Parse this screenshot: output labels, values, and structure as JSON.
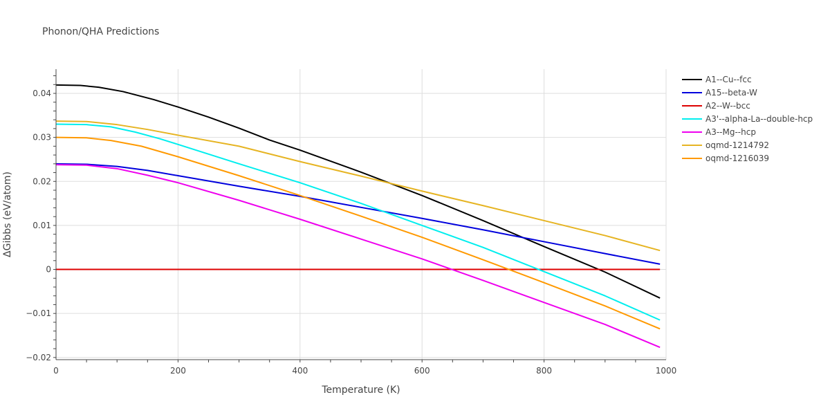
{
  "chart_data": {
    "type": "line",
    "title": "Phonon/QHA Predictions",
    "xlabel": "Temperature (K)",
    "ylabel": "ΔGibbs (eV/atom)",
    "xlim": [
      0,
      1000
    ],
    "ylim": [
      -0.0205,
      0.0455
    ],
    "x_ticks": [
      0,
      200,
      400,
      600,
      800,
      1000
    ],
    "x_tick_labels": [
      "0",
      "200",
      "400",
      "600",
      "800",
      "1000"
    ],
    "y_ticks": [
      -0.02,
      -0.01,
      0,
      0.01,
      0.02,
      0.03,
      0.04
    ],
    "y_tick_labels": [
      "−0.02",
      "−0.01",
      "0",
      "0.01",
      "0.02",
      "0.03",
      "0.04"
    ],
    "grid": true,
    "legend_position": "top-right",
    "series": [
      {
        "name": "A1--Cu--fcc",
        "color": "#000000",
        "points": [
          [
            0,
            0.0419
          ],
          [
            40,
            0.0418
          ],
          [
            70,
            0.0414
          ],
          [
            110,
            0.0404
          ],
          [
            160,
            0.0386
          ],
          [
            200,
            0.0369
          ],
          [
            250,
            0.0346
          ],
          [
            300,
            0.0321
          ],
          [
            350,
            0.0294
          ],
          [
            400,
            0.0271
          ],
          [
            500,
            0.0221
          ],
          [
            600,
            0.0168
          ],
          [
            700,
            0.0111
          ],
          [
            800,
            0.0052
          ],
          [
            900,
            -0.0006
          ],
          [
            990,
            -0.0065
          ]
        ]
      },
      {
        "name": "A15--beta-W",
        "color": "#0000dd",
        "points": [
          [
            0,
            0.024
          ],
          [
            50,
            0.0239
          ],
          [
            100,
            0.0234
          ],
          [
            150,
            0.0225
          ],
          [
            200,
            0.0213
          ],
          [
            300,
            0.0189
          ],
          [
            400,
            0.0166
          ],
          [
            500,
            0.0141
          ],
          [
            600,
            0.0116
          ],
          [
            700,
            0.009
          ],
          [
            800,
            0.0063
          ],
          [
            900,
            0.0036
          ],
          [
            990,
            0.0012
          ]
        ]
      },
      {
        "name": "A2--W--bcc",
        "color": "#dd0000",
        "points": [
          [
            0,
            0
          ],
          [
            990,
            0
          ]
        ]
      },
      {
        "name": "A3'--alpha-La--double-hcp",
        "color": "#00eeee",
        "points": [
          [
            0,
            0.033
          ],
          [
            50,
            0.0329
          ],
          [
            90,
            0.0324
          ],
          [
            130,
            0.0312
          ],
          [
            170,
            0.0297
          ],
          [
            200,
            0.0284
          ],
          [
            300,
            0.024
          ],
          [
            400,
            0.0197
          ],
          [
            500,
            0.015
          ],
          [
            600,
            0.01
          ],
          [
            700,
            0.005
          ],
          [
            800,
            -0.0005
          ],
          [
            900,
            -0.006
          ],
          [
            990,
            -0.0115
          ]
        ]
      },
      {
        "name": "A3--Mg--hcp",
        "color": "#ee00ee",
        "points": [
          [
            0,
            0.0238
          ],
          [
            50,
            0.0237
          ],
          [
            100,
            0.0229
          ],
          [
            150,
            0.0214
          ],
          [
            200,
            0.0197
          ],
          [
            300,
            0.0157
          ],
          [
            400,
            0.0114
          ],
          [
            500,
            0.0069
          ],
          [
            600,
            0.0024
          ],
          [
            700,
            -0.0025
          ],
          [
            800,
            -0.0075
          ],
          [
            900,
            -0.0125
          ],
          [
            990,
            -0.0177
          ]
        ]
      },
      {
        "name": "oqmd-1214792",
        "color": "#e6b422",
        "points": [
          [
            0,
            0.0337
          ],
          [
            50,
            0.0336
          ],
          [
            100,
            0.0329
          ],
          [
            150,
            0.0318
          ],
          [
            200,
            0.0305
          ],
          [
            300,
            0.028
          ],
          [
            400,
            0.0245
          ],
          [
            500,
            0.0212
          ],
          [
            600,
            0.0178
          ],
          [
            700,
            0.0145
          ],
          [
            800,
            0.0111
          ],
          [
            900,
            0.0077
          ],
          [
            990,
            0.0043
          ]
        ]
      },
      {
        "name": "oqmd-1216039",
        "color": "#ff9900",
        "points": [
          [
            0,
            0.03
          ],
          [
            50,
            0.0299
          ],
          [
            90,
            0.0293
          ],
          [
            140,
            0.028
          ],
          [
            200,
            0.0256
          ],
          [
            300,
            0.0213
          ],
          [
            400,
            0.0168
          ],
          [
            500,
            0.0121
          ],
          [
            600,
            0.0073
          ],
          [
            700,
            0.0022
          ],
          [
            800,
            -0.003
          ],
          [
            900,
            -0.0083
          ],
          [
            990,
            -0.0135
          ]
        ]
      }
    ]
  }
}
